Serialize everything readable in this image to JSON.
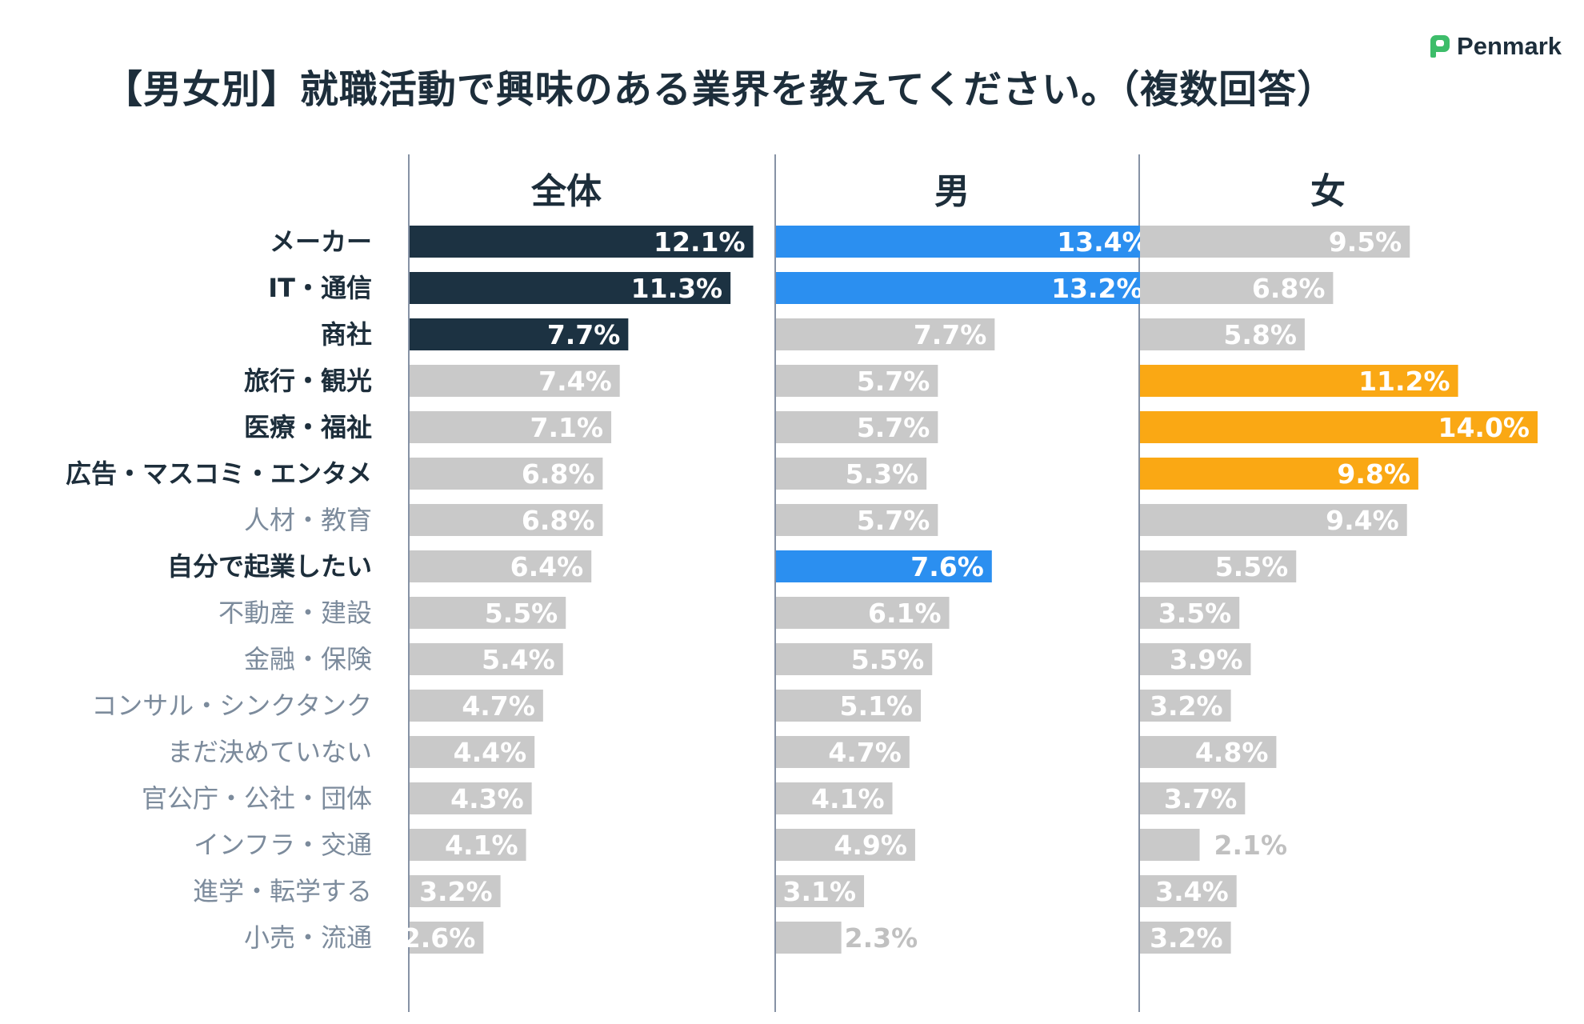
{
  "title": "【男女別】就職活動で興味のある業界を教えてください。（複数回答）",
  "brand": "Penmark",
  "colors": {
    "all_highlight": "#1c3242",
    "male_highlight": "#2b8ff0",
    "female_highlight": "#faa814",
    "neutral_bar": "#c9c9c9",
    "label_strong": "#1d2e3b",
    "label_muted": "#7c8b9c",
    "brand_green": "#3dbd6a"
  },
  "chart_data": {
    "type": "bar",
    "orientation": "horizontal",
    "title": "【男女別】就職活動で興味のある業界を教えてください。（複数回答）",
    "unit": "%",
    "categories": [
      "メーカー",
      "IT・通信",
      "商社",
      "旅行・観光",
      "医療・福祉",
      "広告・マスコミ・エンタメ",
      "人材・教育",
      "自分で起業したい",
      "不動産・建設",
      "金融・保険",
      "コンサル・シンクタンク",
      "まだ決めていない",
      "官公庁・公社・団体",
      "インフラ・交通",
      "進学・転学する",
      "小売・流通"
    ],
    "emphasized_categories": [
      "メーカー",
      "IT・通信",
      "商社",
      "旅行・観光",
      "医療・福祉",
      "広告・マスコミ・エンタメ",
      "自分で起業したい"
    ],
    "series": [
      {
        "name": "全体",
        "values": [
          12.1,
          11.3,
          7.7,
          7.4,
          7.1,
          6.8,
          6.8,
          6.4,
          5.5,
          5.4,
          4.7,
          4.4,
          4.3,
          4.1,
          3.2,
          2.6
        ],
        "labels": [
          "12.1%",
          "11.3%",
          "7.7%",
          "7.4%",
          "7.1%",
          "6.8%",
          "6.8%",
          "6.4%",
          "5.5%",
          "5.4%",
          "4.7%",
          "4.4%",
          "4.3%",
          "4.1%",
          "3.2%",
          "2.6%"
        ],
        "highlighted": [
          0,
          1,
          2
        ]
      },
      {
        "name": "男",
        "values": [
          13.4,
          13.2,
          7.7,
          5.7,
          5.7,
          5.3,
          5.7,
          7.6,
          6.1,
          5.5,
          5.1,
          4.7,
          4.1,
          4.9,
          3.1,
          2.3
        ],
        "labels": [
          "13.4%",
          "13.2%",
          "7.7%",
          "5.7%",
          "5.7%",
          "5.3%",
          "5.7%",
          "7.6%",
          "6.1%",
          "5.5%",
          "5.1%",
          "4.7%",
          "4.1%",
          "4.9%",
          "3.1%",
          "2.3%"
        ],
        "highlighted": [
          0,
          1,
          7
        ]
      },
      {
        "name": "女",
        "values": [
          9.5,
          6.8,
          5.8,
          11.2,
          14.0,
          9.8,
          9.4,
          5.5,
          3.5,
          3.9,
          3.2,
          4.8,
          3.7,
          2.1,
          3.4,
          3.2
        ],
        "labels": [
          "9.5%",
          "6.8%",
          "5.8%",
          "11.2%",
          "14.0%",
          "9.8%",
          "9.4%",
          "5.5%",
          "3.5%",
          "3.9%",
          "3.2%",
          "4.8%",
          "3.7%",
          "2.1%",
          "3.4%",
          "3.2%"
        ],
        "highlighted": [
          3,
          4,
          5
        ]
      }
    ]
  }
}
